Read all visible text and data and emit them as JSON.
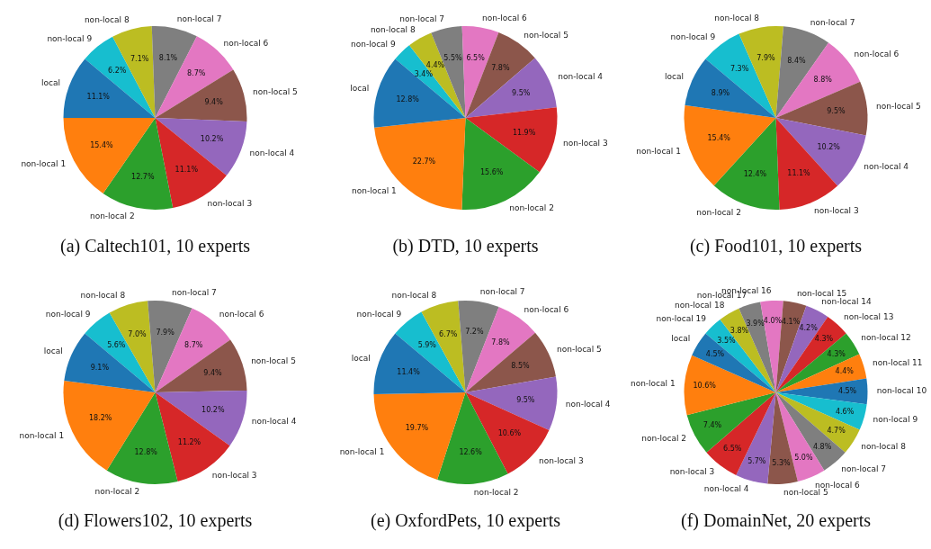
{
  "chart_data": [
    {
      "type": "pie",
      "title": "(a) Caltech101, 10 experts",
      "categories": [
        "local",
        "non-local 1",
        "non-local 2",
        "non-local 3",
        "non-local 4",
        "non-local 5",
        "non-local 6",
        "non-local 7",
        "non-local 8",
        "non-local 9"
      ],
      "values": [
        11.1,
        15.4,
        12.7,
        11.1,
        10.2,
        9.4,
        8.7,
        8.1,
        7.1,
        6.2
      ],
      "colors": [
        "#1f77b4",
        "#ff7f0e",
        "#2ca02c",
        "#d62728",
        "#9467bd",
        "#8c564b",
        "#e377c2",
        "#7f7f7f",
        "#bcbd22",
        "#17becf"
      ],
      "value_labels": [
        "11.1%",
        "15.4%",
        "12.7%",
        "11.1%",
        "10.2%",
        "9.4%",
        "8.7%",
        "8.1%",
        "7.1%",
        "6.2%"
      ]
    },
    {
      "type": "pie",
      "title": "(b) DTD, 10 experts",
      "categories": [
        "local",
        "non-local 1",
        "non-local 2",
        "non-local 3",
        "non-local 4",
        "non-local 5",
        "non-local 6",
        "non-local 7",
        "non-local 8",
        "non-local 9"
      ],
      "values": [
        12.8,
        22.7,
        15.6,
        11.9,
        9.5,
        7.8,
        6.5,
        5.5,
        4.4,
        3.4
      ],
      "colors": [
        "#1f77b4",
        "#ff7f0e",
        "#2ca02c",
        "#d62728",
        "#9467bd",
        "#8c564b",
        "#e377c2",
        "#7f7f7f",
        "#bcbd22",
        "#17becf"
      ],
      "value_labels": [
        "12.8%",
        "22.7%",
        "15.6%",
        "11.9%",
        "9.5%",
        "7.8%",
        "6.5%",
        "5.5%",
        "4.4%",
        "3.4%"
      ]
    },
    {
      "type": "pie",
      "title": "(c) Food101, 10 experts",
      "categories": [
        "local",
        "non-local 1",
        "non-local 2",
        "non-local 3",
        "non-local 4",
        "non-local 5",
        "non-local 6",
        "non-local 7",
        "non-local 8",
        "non-local 9"
      ],
      "values": [
        8.9,
        15.4,
        12.4,
        11.1,
        10.2,
        9.5,
        8.8,
        8.4,
        7.9,
        7.3
      ],
      "colors": [
        "#1f77b4",
        "#ff7f0e",
        "#2ca02c",
        "#d62728",
        "#9467bd",
        "#8c564b",
        "#e377c2",
        "#7f7f7f",
        "#bcbd22",
        "#17becf"
      ],
      "value_labels": [
        "8.9%",
        "15.4%",
        "12.4%",
        "11.1%",
        "10.2%",
        "9.5%",
        "8.8%",
        "8.4%",
        "7.9%",
        "7.3%"
      ]
    },
    {
      "type": "pie",
      "title": "(d) Flowers102, 10 experts",
      "categories": [
        "local",
        "non-local 1",
        "non-local 2",
        "non-local 3",
        "non-local 4",
        "non-local 5",
        "non-local 6",
        "non-local 7",
        "non-local 8",
        "non-local 9"
      ],
      "values": [
        9.1,
        18.2,
        12.8,
        11.2,
        10.2,
        9.4,
        8.7,
        7.9,
        7.0,
        5.6
      ],
      "colors": [
        "#1f77b4",
        "#ff7f0e",
        "#2ca02c",
        "#d62728",
        "#9467bd",
        "#8c564b",
        "#e377c2",
        "#7f7f7f",
        "#bcbd22",
        "#17becf"
      ],
      "value_labels": [
        "9.1%",
        "18.2%",
        "12.8%",
        "11.2%",
        "10.2%",
        "9.4%",
        "8.7%",
        "7.9%",
        "7.0%",
        "5.6%"
      ]
    },
    {
      "type": "pie",
      "title": "(e) OxfordPets, 10 experts",
      "categories": [
        "local",
        "non-local 1",
        "non-local 2",
        "non-local 3",
        "non-local 4",
        "non-local 5",
        "non-local 6",
        "non-local 7",
        "non-local 8",
        "non-local 9"
      ],
      "values": [
        11.4,
        19.7,
        12.6,
        10.6,
        9.5,
        8.5,
        7.8,
        7.2,
        6.7,
        5.9
      ],
      "colors": [
        "#1f77b4",
        "#ff7f0e",
        "#2ca02c",
        "#d62728",
        "#9467bd",
        "#8c564b",
        "#e377c2",
        "#7f7f7f",
        "#bcbd22",
        "#17becf"
      ],
      "value_labels": [
        "11.4%",
        "19.7%",
        "12.6%",
        "10.6%",
        "9.5%",
        "8.5%",
        "7.8%",
        "7.2%",
        "6.7%",
        "5.9%"
      ]
    },
    {
      "type": "pie",
      "title": "(f) DomainNet, 20 experts",
      "categories": [
        "local",
        "non-local 1",
        "non-local 2",
        "non-local 3",
        "non-local 4",
        "non-local 5",
        "non-local 6",
        "non-local 7",
        "non-local 8",
        "non-local 9",
        "non-local 10",
        "non-local 11",
        "non-local 12",
        "non-local 13",
        "non-local 14",
        "non-local 15",
        "non-local 16",
        "non-local 17",
        "non-local 18",
        "non-local 19"
      ],
      "values": [
        4.5,
        10.6,
        7.4,
        6.5,
        5.7,
        5.3,
        5.0,
        4.8,
        4.7,
        4.6,
        4.5,
        4.4,
        4.3,
        4.3,
        4.2,
        4.1,
        4.0,
        3.9,
        3.8,
        3.5
      ],
      "colors": [
        "#1f77b4",
        "#ff7f0e",
        "#2ca02c",
        "#d62728",
        "#9467bd",
        "#8c564b",
        "#e377c2",
        "#7f7f7f",
        "#bcbd22",
        "#17becf",
        "#1f77b4",
        "#ff7f0e",
        "#2ca02c",
        "#d62728",
        "#9467bd",
        "#8c564b",
        "#e377c2",
        "#7f7f7f",
        "#bcbd22",
        "#17becf"
      ],
      "value_labels": [
        "4.5%",
        "10.6%",
        "7.4%",
        "6.5%",
        "5.7%",
        "5.3%",
        "5.0%",
        "4.8%",
        "4.7%",
        "4.6%",
        "4.5%",
        "4.4%",
        "4.3%",
        "4.3%",
        "4.2%",
        "4.1%",
        "4.0%",
        "3.9%",
        "3.8%",
        "3.5%"
      ]
    }
  ]
}
